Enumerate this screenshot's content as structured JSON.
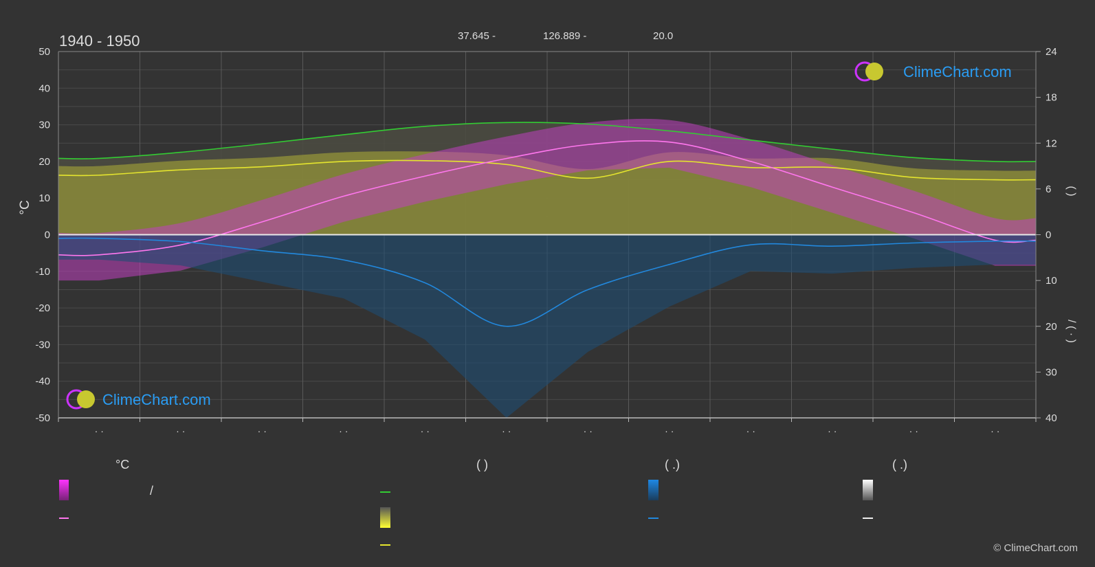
{
  "header": {
    "period": "1940 - 1950",
    "coord_lat": "37.645 -",
    "coord_lon": "126.889 -",
    "elevation": "20.0"
  },
  "brand": {
    "name": "ClimeChart.com",
    "copyright": "© ClimeChart.com"
  },
  "chart_data": {
    "type": "line",
    "months": 12,
    "month_tick_labels": [
      "· ·",
      "· ·",
      "· ·",
      "· ·",
      "· ·",
      "· ·",
      "· ·",
      "· ·",
      "· ·",
      "· ·",
      "· ·",
      "· ·"
    ],
    "y_left": {
      "label": "°C",
      "range": [
        -50,
        50
      ],
      "ticks": [
        50,
        40,
        30,
        20,
        10,
        0,
        -10,
        -20,
        -30,
        -40,
        -50
      ]
    },
    "y_right_top": {
      "label": "( )",
      "range": [
        0,
        24
      ],
      "ticks": [
        24,
        18,
        12,
        6,
        0
      ]
    },
    "y_right_bottom": {
      "label": "/ ( · )",
      "range": [
        0,
        40
      ],
      "ticks": [
        10,
        20,
        30,
        40
      ]
    },
    "grid": true,
    "series": [
      {
        "key": "daylight",
        "color": "#33cc33",
        "axis": "right_top",
        "values": [
          10.0,
          10.8,
          11.9,
          13.1,
          14.2,
          14.7,
          14.5,
          13.6,
          12.4,
          11.2,
          10.1,
          9.6
        ]
      },
      {
        "key": "sunshine",
        "color": "#e5e52e",
        "axis": "right_top",
        "values": [
          7.8,
          8.5,
          8.9,
          9.6,
          9.7,
          9.2,
          7.4,
          9.6,
          8.8,
          8.8,
          7.5,
          7.2
        ]
      },
      {
        "key": "temp_mean",
        "color": "#ff77ee",
        "axis": "left",
        "values": [
          -5.5,
          -2.8,
          3.5,
          10.5,
          16.0,
          20.8,
          24.6,
          25.3,
          20.0,
          13.0,
          6.0,
          -1.5
        ]
      },
      {
        "key": "precip_mean",
        "color": "#2288dd",
        "axis": "right_bottom",
        "values": [
          0.8,
          1.5,
          3.5,
          5.5,
          10.5,
          20.0,
          12.0,
          6.5,
          2.2,
          2.5,
          1.8,
          1.4
        ]
      }
    ]
  },
  "legend": {
    "col1_head": "°C",
    "col1_item1": "/",
    "col2_head": "(          )",
    "col3_head": "(   .)",
    "col4_head": "(   .)",
    "colors": {
      "temp_range": "#e020e0",
      "temp_mean": "#ff77ee",
      "daylight": "#33cc33",
      "sunshine_range": "#e5e52e",
      "sunshine": "#e5e52e",
      "rain": "#2288dd",
      "snow": "#dddddd"
    }
  }
}
